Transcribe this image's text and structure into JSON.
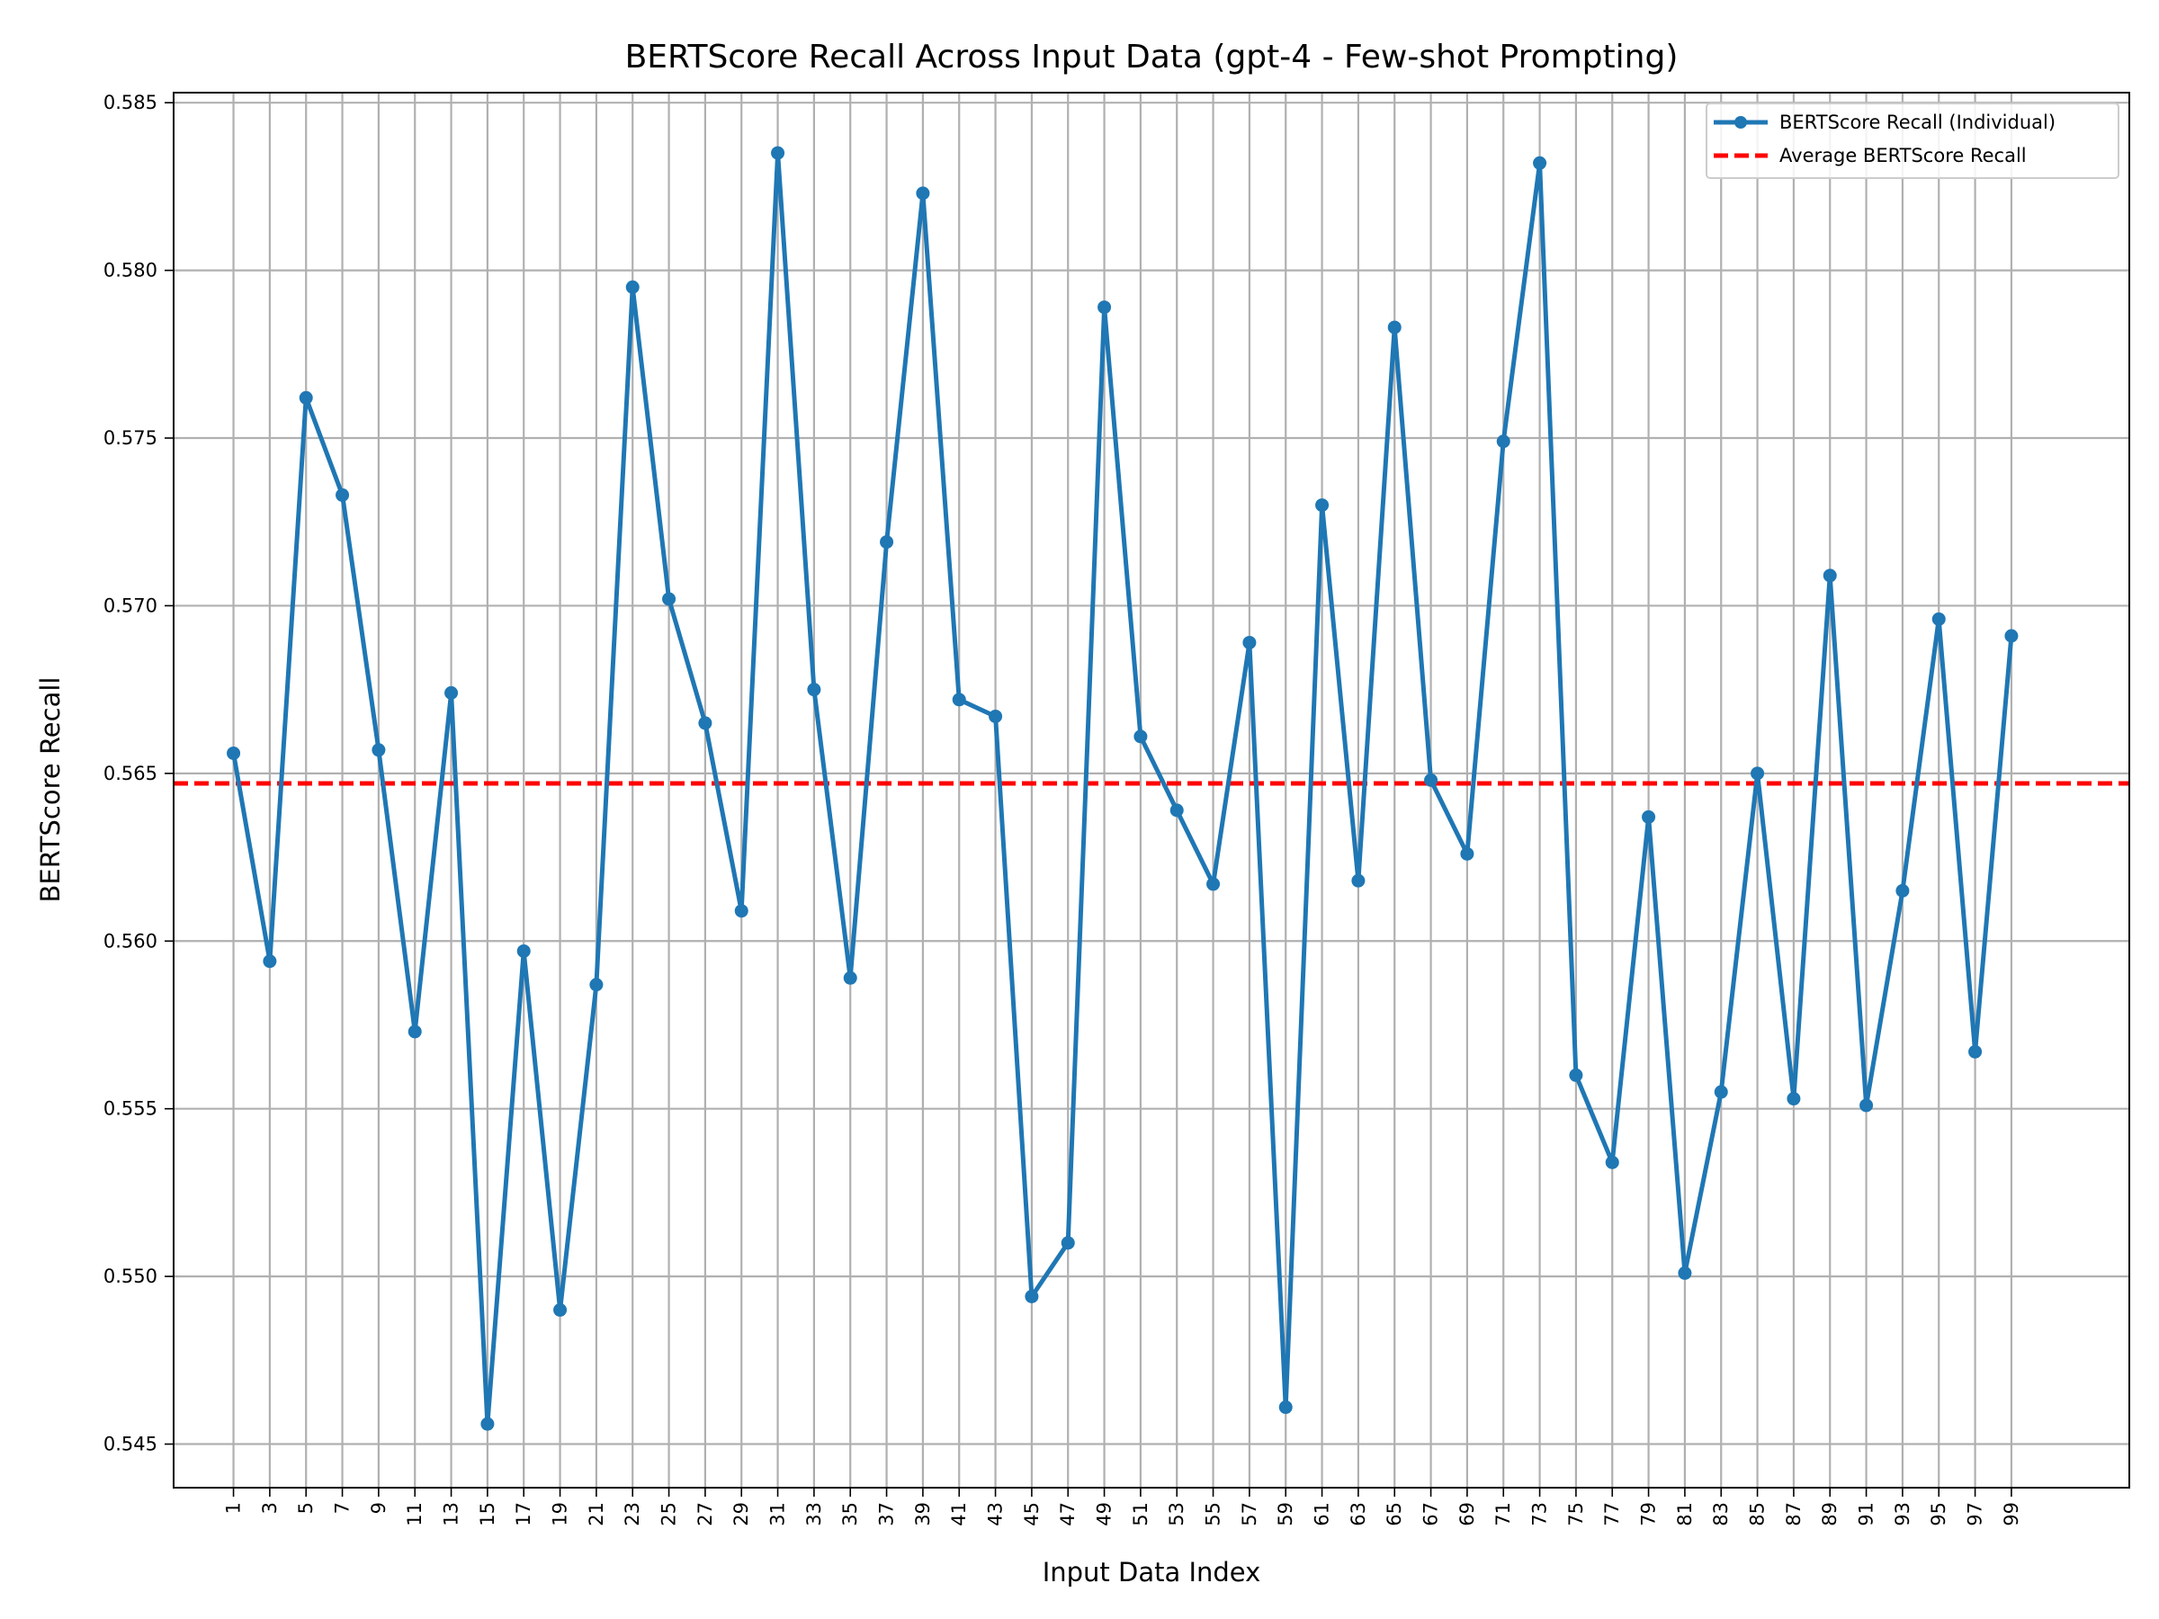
{
  "chart_data": {
    "type": "line",
    "title": "BERTScore Recall Across Input Data (gpt-4 - Few-shot Prompting)",
    "xlabel": "Input Data Index",
    "ylabel": "BERTScore Recall",
    "ylim": [
      0.5437,
      0.5853
    ],
    "xlim": [
      -2.3,
      105.5
    ],
    "grid": true,
    "legend_position": "top-right",
    "x": [
      1,
      3,
      5,
      7,
      9,
      11,
      13,
      15,
      17,
      19,
      21,
      23,
      25,
      27,
      29,
      31,
      33,
      35,
      37,
      39,
      41,
      43,
      45,
      47,
      49,
      51,
      53,
      55,
      57,
      59,
      61,
      63,
      65,
      67,
      69,
      71,
      73,
      75,
      77,
      79,
      81,
      83,
      85,
      87,
      89,
      91,
      93,
      95,
      97,
      99
    ],
    "x_tick_labels": [
      "1",
      "3",
      "5",
      "7",
      "9",
      "11",
      "13",
      "15",
      "17",
      "19",
      "21",
      "23",
      "25",
      "27",
      "29",
      "31",
      "33",
      "35",
      "37",
      "39",
      "41",
      "43",
      "45",
      "47",
      "49",
      "51",
      "53",
      "55",
      "57",
      "59",
      "61",
      "63",
      "65",
      "67",
      "69",
      "71",
      "73",
      "75",
      "77",
      "79",
      "81",
      "83",
      "85",
      "87",
      "89",
      "91",
      "93",
      "95",
      "97",
      "99"
    ],
    "y_ticks": [
      0.545,
      0.55,
      0.555,
      0.56,
      0.565,
      0.57,
      0.575,
      0.58,
      0.585
    ],
    "y_tick_labels": [
      "0.545",
      "0.550",
      "0.555",
      "0.560",
      "0.565",
      "0.570",
      "0.575",
      "0.580",
      "0.585"
    ],
    "series": [
      {
        "name": "BERTScore Recall (Individual)",
        "color": "#1f77b4",
        "style": "solid-with-markers",
        "values": [
          0.5656,
          0.5594,
          0.5762,
          0.5733,
          0.5657,
          0.5573,
          0.5674,
          0.5456,
          0.5597,
          0.549,
          0.5587,
          0.5795,
          0.5702,
          0.5665,
          0.5609,
          0.5835,
          0.5675,
          0.5589,
          0.5719,
          0.5823,
          0.5672,
          0.5667,
          0.5494,
          0.551,
          0.5789,
          0.5661,
          0.5639,
          0.5617,
          0.5689,
          0.5461,
          0.573,
          0.5618,
          0.5783,
          0.5648,
          0.5626,
          0.5749,
          0.5832,
          0.556,
          0.5534,
          0.5637,
          0.5501,
          0.5555,
          0.565,
          0.5553,
          0.5709,
          0.5551,
          0.5615,
          0.5696,
          0.5567,
          0.5691
        ]
      },
      {
        "name": "Average BERTScore Recall",
        "color": "#ff0000",
        "style": "dashed",
        "value": 0.5647
      }
    ]
  }
}
